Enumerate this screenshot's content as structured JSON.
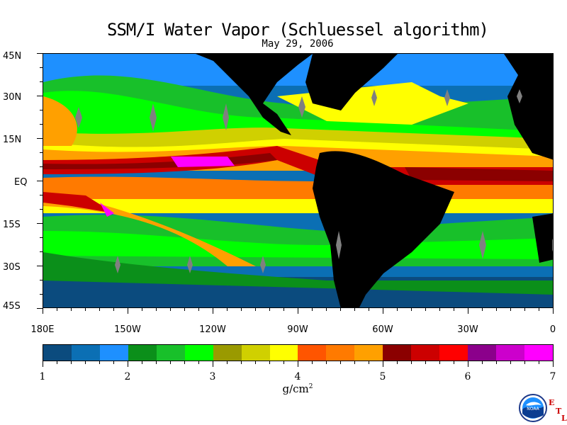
{
  "title": "SSM/I Water Vapor (Schluessel algorithm)",
  "date": "May 29, 2006",
  "lat_labels": [
    "45N",
    "30N",
    "15N",
    "EQ",
    "15S",
    "30S",
    "45S"
  ],
  "lon_labels": [
    "180E",
    "150W",
    "120W",
    "90W",
    "60W",
    "30W",
    "0"
  ],
  "colorbar": {
    "units": "g/cm",
    "units_superscript": "2",
    "tick_labels": [
      "1",
      "2",
      "3",
      "4",
      "5",
      "6",
      "7"
    ],
    "colors": [
      "#0b4b7e",
      "#0b6fb4",
      "#1e90ff",
      "#0b8f1a",
      "#18c02a",
      "#00ff00",
      "#9a9a00",
      "#d0d000",
      "#ffff00",
      "#ff5500",
      "#ff7a00",
      "#ffa000",
      "#8b0000",
      "#cc0000",
      "#ff0000",
      "#8b008b",
      "#cc00cc",
      "#ff00ff"
    ]
  },
  "logo": {
    "name": "NOAA",
    "etl_letters": [
      "E",
      "T",
      "L"
    ]
  }
}
